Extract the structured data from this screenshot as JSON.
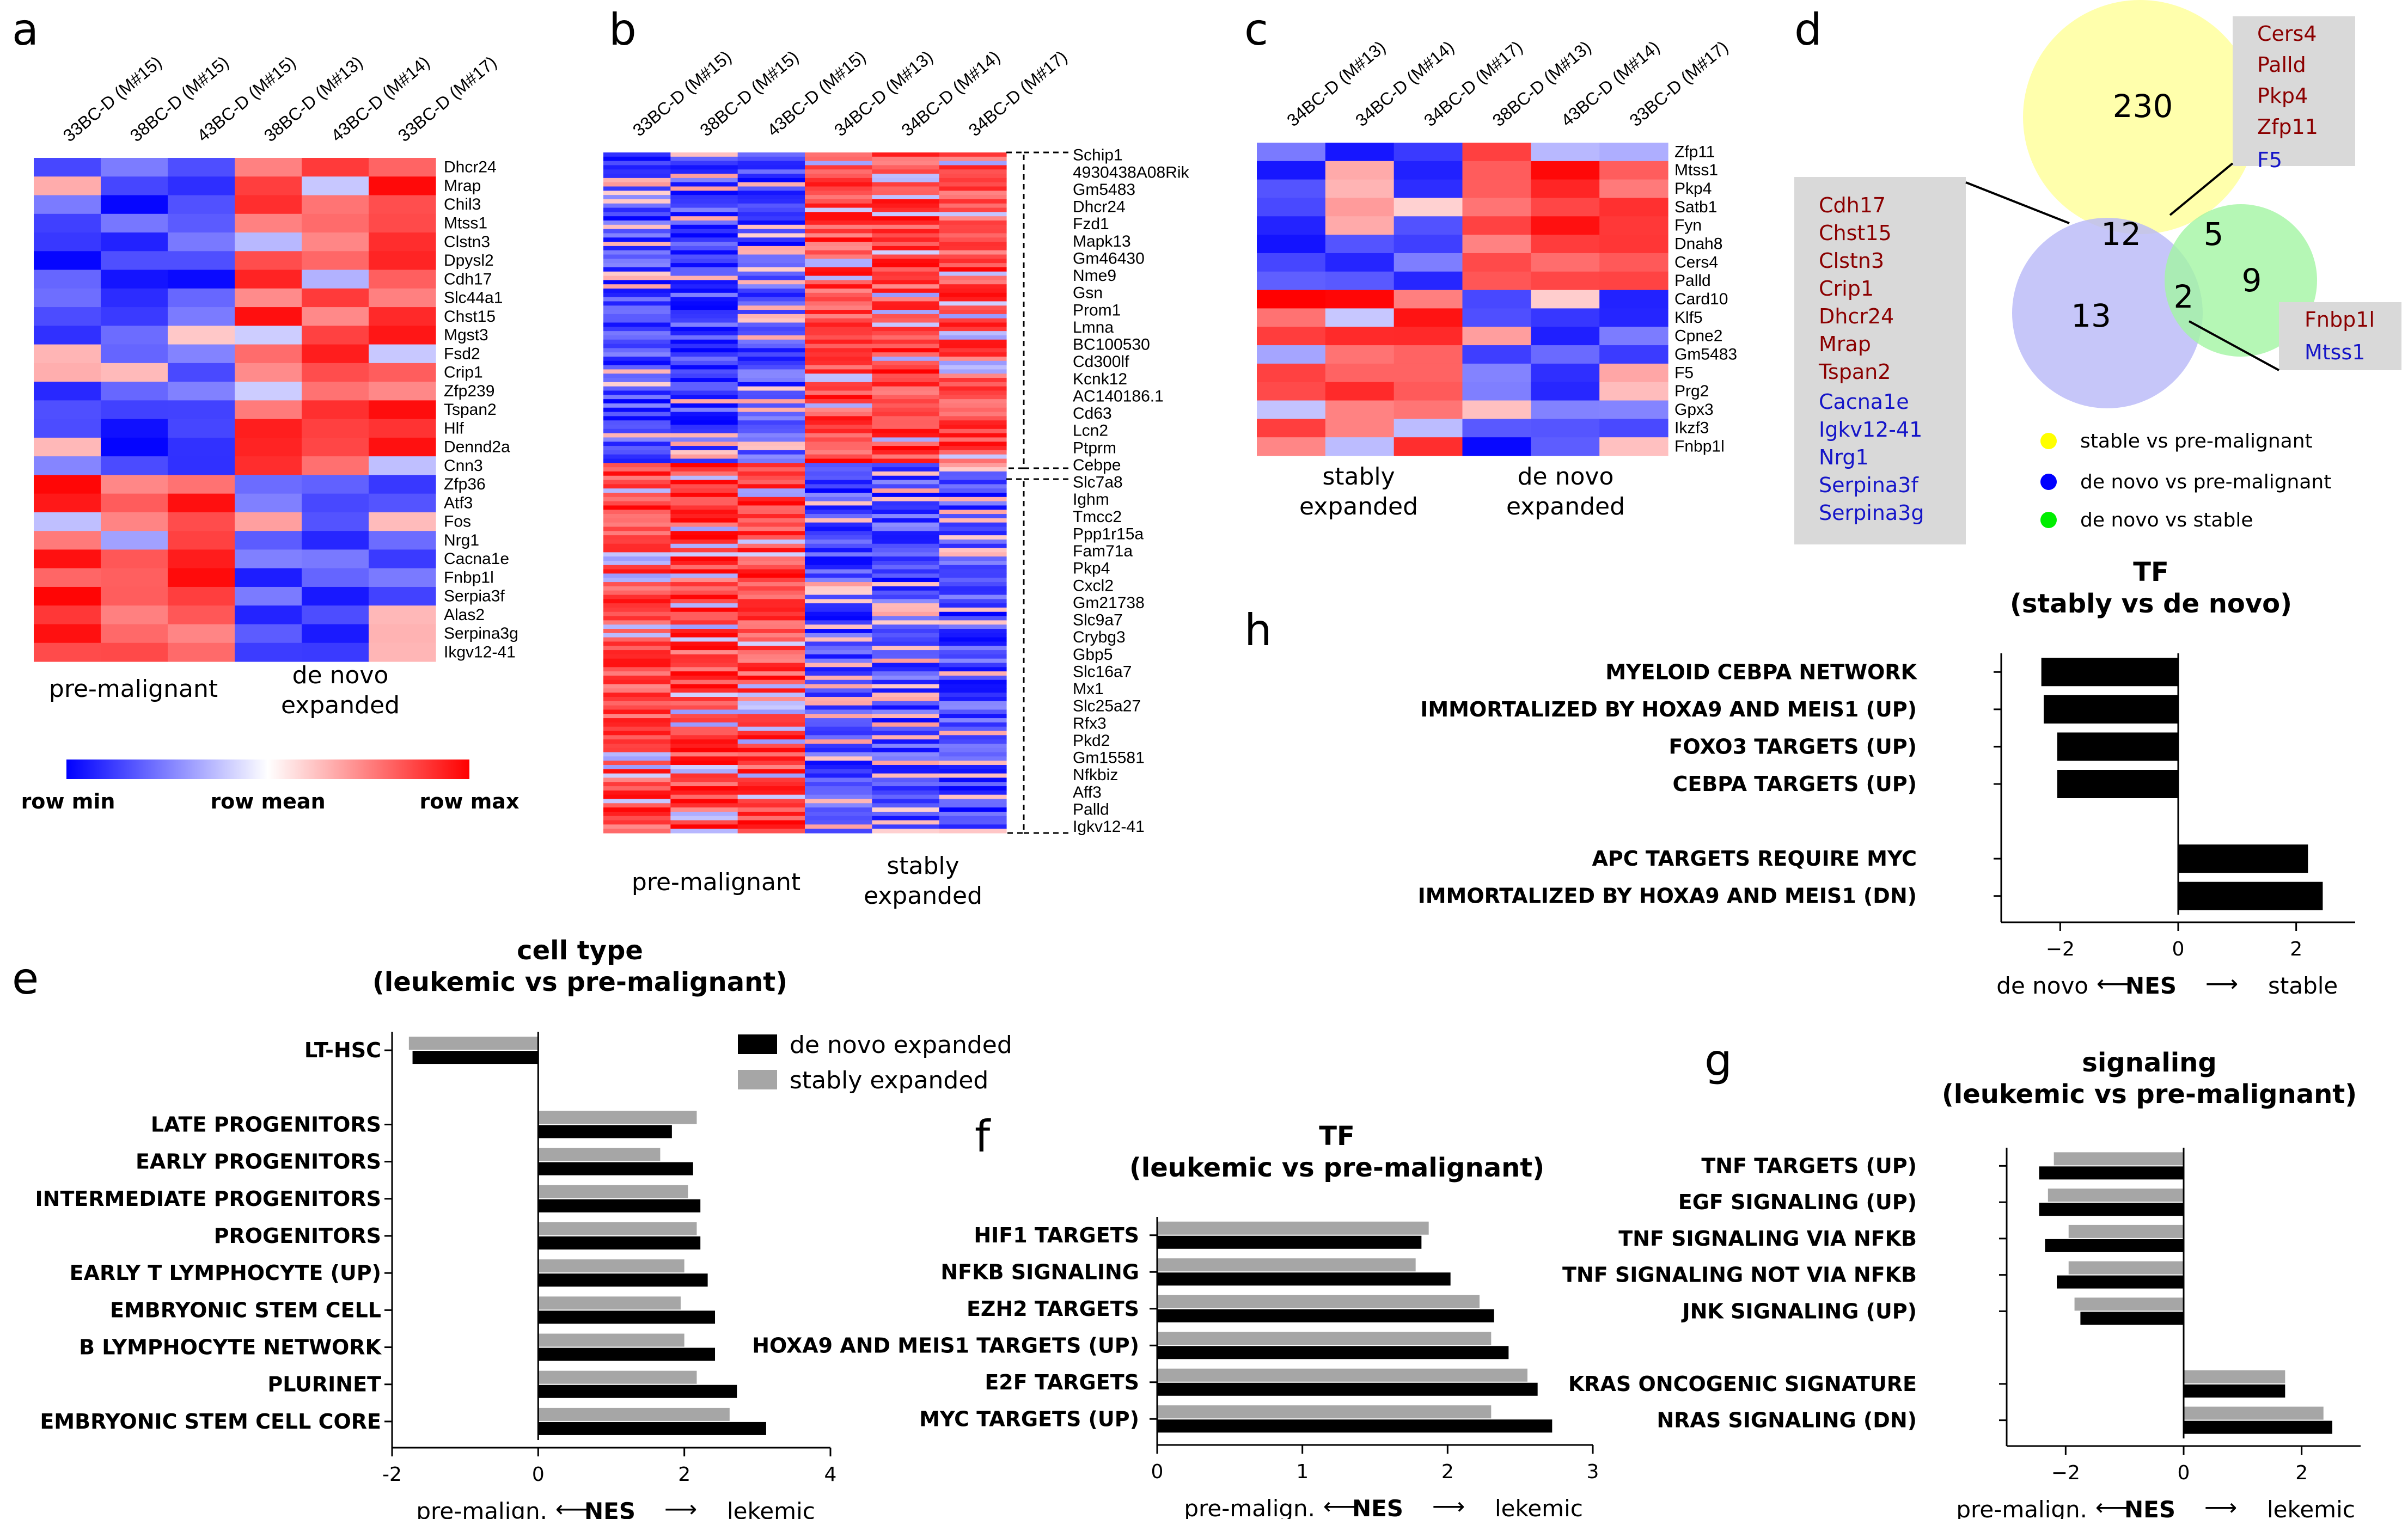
{
  "labels": {
    "a": "a",
    "b": "b",
    "c": "c",
    "d": "d",
    "e": "e",
    "f": "f",
    "g": "g",
    "h": "h"
  },
  "colors": {
    "blue": "#0000ff",
    "red": "#ff0000",
    "white": "#ffffff",
    "dark_red": "#8b0000",
    "gene_blue": "#1515c8",
    "bar_black": "#000000",
    "bar_gray": "#a6a6a6",
    "venn_yellow": "#ffff9e",
    "venn_blue": "#b8b8f8",
    "venn_green": "#a3f5a3",
    "gray_box": "#d9d9d9"
  },
  "panel_a": {
    "columns": [
      "33BC-D (M#15)",
      "38BC-D (M#15)",
      "43BC-D (M#15)",
      "38BC-D (M#13)",
      "43BC-D (M#14)",
      "33BC-D (M#17)"
    ],
    "genes": [
      "Dhcr24",
      "Mrap",
      "Chil3",
      "Mtss1",
      "Clstn3",
      "Dpysl2",
      "Cdh17",
      "Slc44a1",
      "Chst15",
      "Mgst3",
      "Fsd2",
      "Crip1",
      "Zfp239",
      "Tspan2",
      "Hlf",
      "Dennd2a",
      "Cnn3",
      "Zfp36",
      "Atf3",
      "Fos",
      "Nrg1",
      "Cacna1e",
      "Fnbp1l",
      "Serpia3f",
      "Alas2",
      "Serpina3g",
      "Ikgv12-41"
    ],
    "group1": "pre-malignant",
    "group2_line1": "de novo",
    "group2_line2": "expanded",
    "legend_min": "row min",
    "legend_mean": "row mean",
    "legend_max": "row max"
  },
  "panel_b": {
    "columns": [
      "33BC-D (M#15)",
      "38BC-D (M#15)",
      "43BC-D (M#15)",
      "34BC-D (M#13)",
      "34BC-D (M#14)",
      "34BC-D (M#17)"
    ],
    "genes": [
      "Schip1",
      "4930438A08Rik",
      "Gm5483",
      "Dhcr24",
      "Fzd1",
      "Mapk13",
      "Gm46430",
      "Nme9",
      "Gsn",
      "Prom1",
      "Lmna",
      "BC100530",
      "Cd300lf",
      "Kcnk12",
      "AC140186.1",
      "Cd63",
      "Lcn2",
      "Ptprm",
      "Cebpe",
      "Slc7a8",
      "Ighm",
      "Tmcc2",
      "Ppp1r15a",
      "Fam71a",
      "Pkp4",
      "Cxcl2",
      "Gm21738",
      "Slc9a7",
      "Crybg3",
      "Gbp5",
      "Slc16a7",
      "Mx1",
      "Slc25a27",
      "Rfx3",
      "Pkd2",
      "Gm15581",
      "Nfkbiz",
      "Aff3",
      "Palld",
      "Igkv12-41"
    ],
    "group1": "pre-malignant",
    "group2_line1": "stably",
    "group2_line2": "expanded"
  },
  "panel_c": {
    "columns": [
      "34BC-D (M#13)",
      "34BC-D (M#14)",
      "34BC-D (M#17)",
      "38BC-D (M#13)",
      "43BC-D (M#14)",
      "33BC-D (M#17)"
    ],
    "genes": [
      "Zfp11",
      "Mtss1",
      "Pkp4",
      "Satb1",
      "Fyn",
      "Dnah8",
      "Cers4",
      "Palld",
      "Card10",
      "Klf5",
      "Cpne2",
      "Gm5483",
      "F5",
      "Prg2",
      "Gpx3",
      "Ikzf3",
      "Fnbp1l"
    ],
    "group1_line1": "stably",
    "group1_line2": "expanded",
    "group2_line1": "de novo",
    "group2_line2": "expanded"
  },
  "panel_d": {
    "counts": {
      "yellow_only": "230",
      "yellow_blue": "12",
      "yellow_green": "5",
      "blue_only": "13",
      "blue_green": "2",
      "green_only": "9"
    },
    "box_yellow_green": {
      "red": [
        "Cers4",
        "Palld",
        "Pkp4",
        "Zfp11"
      ],
      "blue": [
        "F5"
      ]
    },
    "box_yellow_blue": {
      "red": [
        "Cdh17",
        "Chst15",
        "Clstn3",
        "Crip1",
        "Dhcr24",
        "Mrap",
        "Tspan2"
      ],
      "blue": [
        "Cacna1e",
        "Igkv12-41",
        "Nrg1",
        "Serpina3f",
        "Serpina3g"
      ]
    },
    "box_blue_green": {
      "red": [
        "Fnbp1l"
      ],
      "blue": [
        "Mtss1"
      ]
    },
    "legend": [
      "stable vs pre-malignant",
      "de novo vs pre-malignant",
      "de novo vs stable"
    ]
  },
  "chart_data": [
    {
      "panel": "e",
      "type": "bar",
      "orientation": "horizontal",
      "title": [
        "cell type",
        "(leukemic vs pre-malignant)"
      ],
      "categories": [
        "LT-HSC",
        "",
        "LATE PROGENITORS",
        "EARLY PROGENITORS",
        "INTERMEDIATE PROGENITORS",
        "PROGENITORS",
        "EARLY T LYMPHOCYTE (UP)",
        "EMBRYONIC STEM CELL",
        "B LYMPHOCYTE NETWORK",
        "PLURINET",
        "EMBRYONIC STEM CELL CORE"
      ],
      "series": [
        {
          "name": "de novo expanded",
          "values": [
            -1.72,
            0,
            1.83,
            2.12,
            2.22,
            2.22,
            2.32,
            2.42,
            2.42,
            2.72,
            3.12
          ]
        },
        {
          "name": "stably expanded",
          "values": [
            -1.77,
            0,
            2.17,
            1.67,
            2.05,
            2.17,
            2.0,
            1.95,
            2.0,
            2.17,
            2.62
          ]
        }
      ],
      "xlim": [
        -2,
        4
      ],
      "xticks": [
        "-2",
        "0",
        "2",
        "4"
      ],
      "xlabel": "NES",
      "xlabel_left": "pre-malign.",
      "xlabel_right": "lekemic"
    },
    {
      "panel": "f",
      "type": "bar",
      "orientation": "horizontal",
      "title": [
        "TF",
        "(leukemic vs pre-malignant)"
      ],
      "categories": [
        "HIF1 TARGETS",
        "NFKB SIGNALING",
        "EZH2 TARGETS",
        "HOXA9 AND MEIS1 TARGETS (UP)",
        "E2F TARGETS",
        "MYC TARGETS (UP)"
      ],
      "series": [
        {
          "name": "de novo expanded",
          "values": [
            1.82,
            2.02,
            2.32,
            2.42,
            2.62,
            2.72
          ]
        },
        {
          "name": "stably expanded",
          "values": [
            1.87,
            1.78,
            2.22,
            2.3,
            2.55,
            2.3
          ]
        }
      ],
      "xlim": [
        0,
        3
      ],
      "xticks": [
        "0",
        "1",
        "2",
        "3"
      ],
      "xlabel": "NES",
      "xlabel_left": "pre-malign.",
      "xlabel_right": "lekemic"
    },
    {
      "panel": "g",
      "type": "bar",
      "orientation": "horizontal",
      "title": [
        "signaling",
        "(leukemic vs pre-malignant)"
      ],
      "categories": [
        "TNF TARGETS (UP)",
        "EGF SIGNALING (UP)",
        "TNF SIGNALING VIA NFKB",
        "TNF SIGNALING NOT VIA NFKB",
        "JNK SIGNALING (UP)",
        "",
        "KRAS ONCOGENIC SIGNATURE",
        "NRAS SIGNALING (DN)"
      ],
      "series": [
        {
          "name": "de novo expanded",
          "values": [
            -2.45,
            -2.45,
            -2.35,
            -2.15,
            -1.75,
            0,
            1.72,
            2.52
          ]
        },
        {
          "name": "stably expanded",
          "values": [
            -2.2,
            -2.3,
            -1.95,
            -1.95,
            -1.85,
            0,
            1.72,
            2.37
          ]
        }
      ],
      "xlim": [
        -3,
        3
      ],
      "xticks": [
        "−2",
        "0",
        "2"
      ],
      "xlabel": "NES",
      "xlabel_left": "pre-malign.",
      "xlabel_right": "lekemic"
    },
    {
      "panel": "h",
      "type": "bar",
      "orientation": "horizontal",
      "title": [
        "TF",
        "(stably vs de novo)"
      ],
      "categories": [
        "MYELOID CEBPA NETWORK",
        "IMMORTALIZED BY HOXA9 AND MEIS1 (UP)",
        "FOXO3 TARGETS (UP)",
        "CEBPA TARGETS (UP)",
        "",
        "APC TARGETS REQUIRE MYC",
        "IMMORTALIZED BY HOXA9 AND MEIS1 (DN)"
      ],
      "series": [
        {
          "name": "stably vs de novo",
          "values": [
            -2.32,
            -2.28,
            -2.05,
            -2.05,
            0,
            2.2,
            2.45
          ]
        }
      ],
      "xlim": [
        -3,
        3
      ],
      "xticks": [
        "−2",
        "0",
        "2"
      ],
      "xlabel": "NES",
      "xlabel_left": "de novo",
      "xlabel_right": "stable"
    }
  ]
}
